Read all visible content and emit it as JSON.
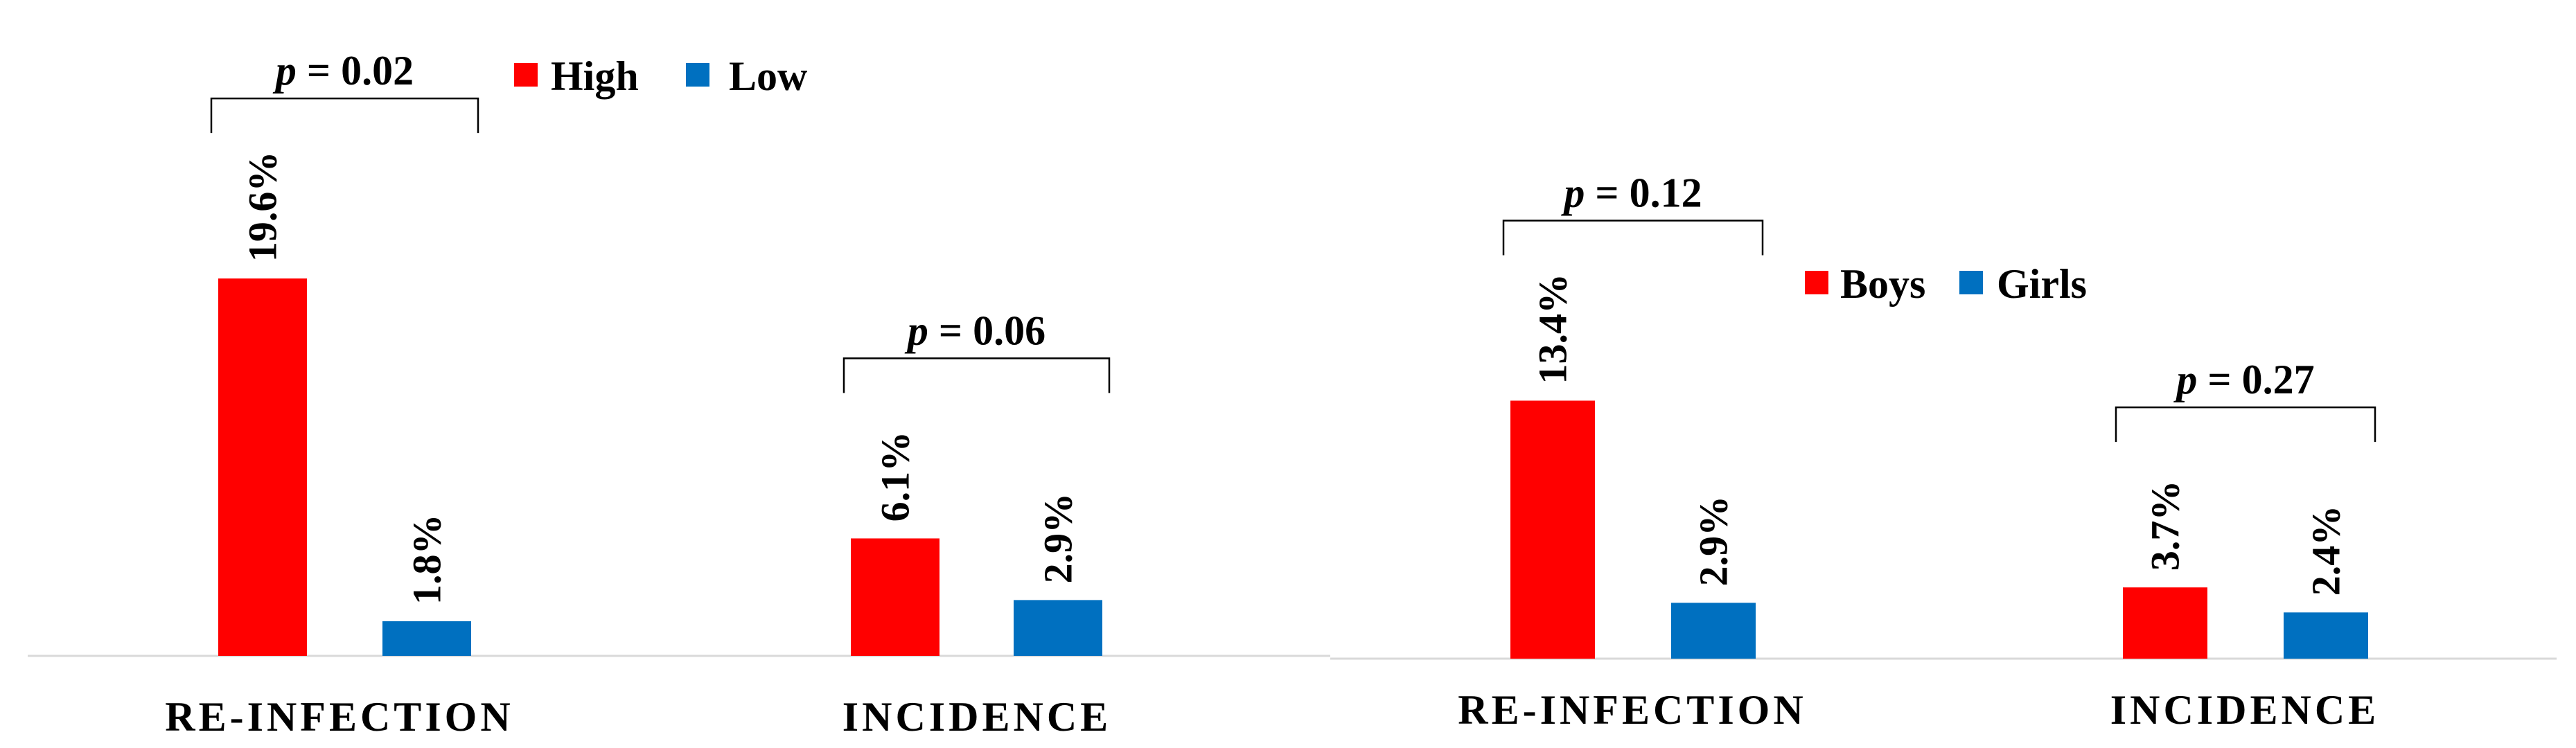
{
  "chart_data": [
    {
      "type": "bar",
      "categories": [
        "RE-INFECTION",
        "INCIDENCE"
      ],
      "series": [
        {
          "name": "High",
          "values": [
            19.6,
            6.1
          ],
          "labels": [
            "19.6%",
            "6.1%"
          ],
          "color": "#ff0000"
        },
        {
          "name": "Low",
          "values": [
            1.8,
            2.9
          ],
          "labels": [
            "1.8%",
            "2.9%"
          ],
          "color": "#0070c0"
        }
      ],
      "annotations": [
        {
          "category": "RE-INFECTION",
          "p_symbol": "p",
          "p_text": " = 0.02"
        },
        {
          "category": "INCIDENCE",
          "p_symbol": "p",
          "p_text": " = 0.06"
        }
      ],
      "legend_placement": "top",
      "grid": false,
      "ylim": [
        0,
        20
      ]
    },
    {
      "type": "bar",
      "categories": [
        "RE-INFECTION",
        "INCIDENCE"
      ],
      "series": [
        {
          "name": "Boys",
          "values": [
            13.4,
            3.7
          ],
          "labels": [
            "13.4%",
            "3.7%"
          ],
          "color": "#ff0000"
        },
        {
          "name": "Girls",
          "values": [
            2.9,
            2.4
          ],
          "labels": [
            "2.9%",
            "2.4%"
          ],
          "color": "#0070c0"
        }
      ],
      "annotations": [
        {
          "category": "RE-INFECTION",
          "p_symbol": "p",
          "p_text": " = 0.12"
        },
        {
          "category": "INCIDENCE",
          "p_symbol": "p",
          "p_text": " = 0.27"
        }
      ],
      "legend_placement": "top",
      "grid": false,
      "ylim": [
        0,
        20
      ]
    }
  ]
}
